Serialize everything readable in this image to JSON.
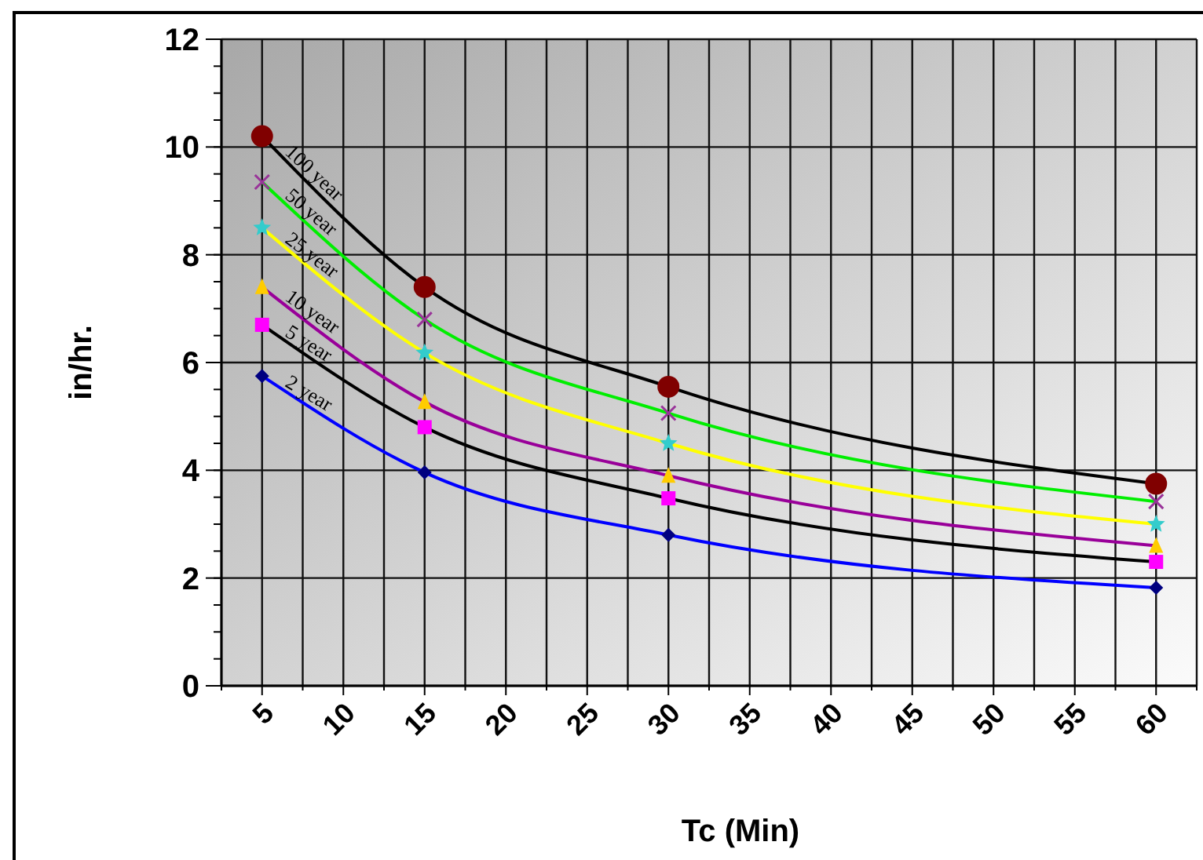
{
  "chart_data": {
    "type": "line",
    "xlabel": "Tc (Min)",
    "ylabel": "in/hr.",
    "xlim": [
      2.5,
      62.5
    ],
    "xticks": [
      {
        "value": 2.5,
        "label": null
      },
      5,
      {
        "value": 7.5,
        "label": null
      },
      10,
      {
        "value": 12.5,
        "label": null
      },
      15,
      {
        "value": 17.5,
        "label": null
      },
      20,
      {
        "value": 22.5,
        "label": null
      },
      25,
      {
        "value": 27.5,
        "label": null
      },
      30,
      {
        "value": 32.5,
        "label": null
      },
      35,
      {
        "value": 37.5,
        "label": null
      },
      40,
      {
        "value": 42.5,
        "label": null
      },
      45,
      {
        "value": 47.5,
        "label": null
      },
      50,
      {
        "value": 52.5,
        "label": null
      },
      55,
      {
        "value": 57.5,
        "label": null
      },
      60,
      {
        "value": 62.5,
        "label": null
      }
    ],
    "ylim": [
      0,
      12
    ],
    "yticks": [
      0,
      2,
      4,
      6,
      8,
      10,
      12
    ],
    "grid": true,
    "line_style": "solid",
    "x": [
      5,
      15,
      30,
      60
    ],
    "series": [
      {
        "name": "100 year",
        "color": "#000000",
        "marker": "circle",
        "colors": [
          "#800000",
          "#800000",
          "#800000",
          "#800000"
        ],
        "values": [
          10.2,
          7.4,
          5.55,
          3.75
        ]
      },
      {
        "name": "50 year",
        "color": "#00ee00",
        "marker": "cross",
        "colors": [
          "#993399",
          "#993399",
          "#993399",
          "#993399"
        ],
        "values": [
          9.35,
          6.8,
          5.06,
          3.42
        ]
      },
      {
        "name": "25 year",
        "color": "#ffff00",
        "marker": "star",
        "colors": [
          "#33cccc",
          "#33cccc",
          "#33cccc",
          "#33cccc"
        ],
        "values": [
          8.5,
          6.18,
          4.5,
          3.0
        ]
      },
      {
        "name": "10 year",
        "color": "#990099",
        "marker": "triangle",
        "colors": [
          "#ffcc00",
          "#ffcc00",
          "#ffcc00",
          "#ffcc00"
        ],
        "values": [
          7.4,
          5.27,
          3.9,
          2.6
        ]
      },
      {
        "name": "5 year",
        "color": "#000000",
        "marker": "square",
        "colors": [
          "#ff00ff",
          "#ff00ff",
          "#ff00ff",
          "#ff00ff"
        ],
        "values": [
          6.7,
          4.8,
          3.48,
          2.3
        ]
      },
      {
        "name": "2 year",
        "color": "#0000ff",
        "marker": "diamond",
        "colors": [
          "#000080",
          "#000080",
          "#000080",
          "#000080"
        ],
        "values": [
          5.75,
          3.96,
          2.8,
          1.82
        ]
      }
    ]
  }
}
